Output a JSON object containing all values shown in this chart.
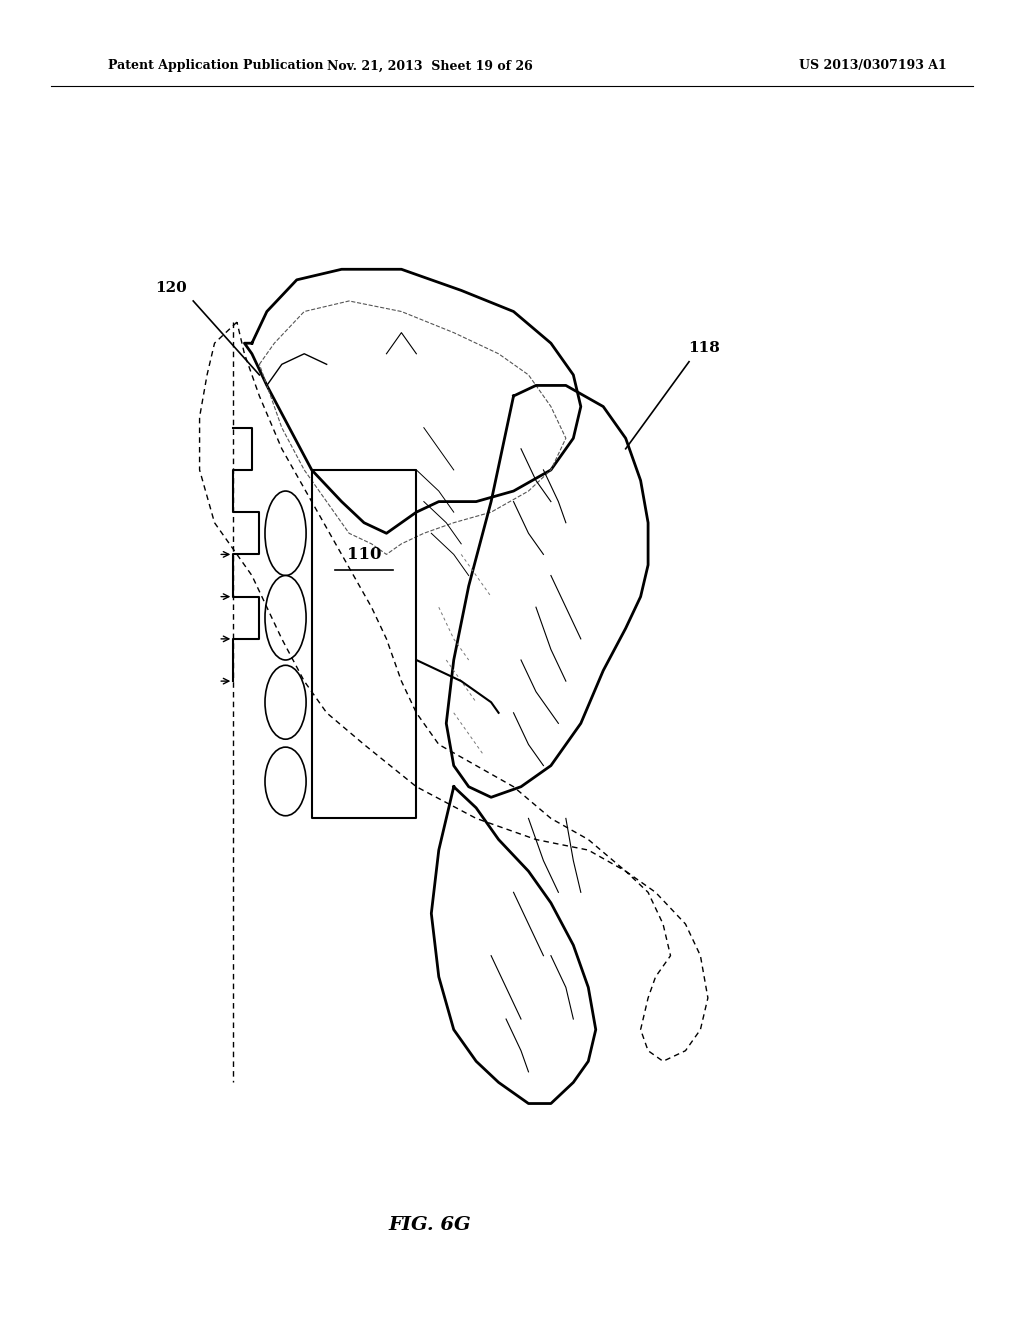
{
  "background_color": "#ffffff",
  "header_left": "Patent Application Publication",
  "header_middle": "Nov. 21, 2013  Sheet 19 of 26",
  "header_right": "US 2013/0307193 A1",
  "figure_caption": "FIG. 6G",
  "label_120": "120",
  "label_110": "110",
  "label_118": "118"
}
